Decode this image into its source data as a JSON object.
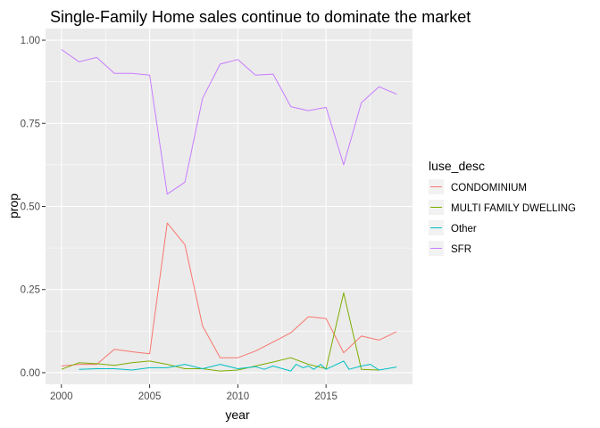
{
  "chart_data": {
    "type": "line",
    "title": "Single-Family Home sales continue to dominate the market",
    "xlabel": "year",
    "ylabel": "prop",
    "xlim": [
      1999.1,
      2019.9
    ],
    "ylim": [
      -0.035,
      1.035
    ],
    "x_ticks": [
      2000,
      2005,
      2010,
      2015
    ],
    "x_tick_labels": [
      "2000",
      "2005",
      "2010",
      "2015"
    ],
    "y_ticks": [
      0,
      0.25,
      0.5,
      0.75,
      1.0
    ],
    "y_tick_labels": [
      "0.00",
      "0.25",
      "0.50",
      "0.75",
      "1.00"
    ],
    "grid": true,
    "legend_title": "luse_desc",
    "legend_position": "right",
    "series": [
      {
        "name": "CONDOMINIUM",
        "color": "#F8766D",
        "x": [
          2000,
          2001,
          2002,
          2003,
          2004,
          2005,
          2006,
          2007,
          2008,
          2009,
          2010,
          2011,
          2012,
          2013,
          2014,
          2015,
          2016,
          2017,
          2018,
          2019
        ],
        "y": [
          0.02,
          0.025,
          0.025,
          0.07,
          0.063,
          0.057,
          0.45,
          0.385,
          0.14,
          0.045,
          0.045,
          0.065,
          0.092,
          0.12,
          0.168,
          0.163,
          0.06,
          0.11,
          0.098,
          0.123
        ]
      },
      {
        "name": "MULTI FAMILY DWELLING",
        "color": "#7CAE00",
        "x": [
          2000,
          2001,
          2002,
          2003,
          2004,
          2005,
          2006,
          2007,
          2008,
          2009,
          2010,
          2011,
          2012,
          2013,
          2014,
          2015,
          2016,
          2017,
          2018
        ],
        "y": [
          0.01,
          0.03,
          0.027,
          0.022,
          0.03,
          0.035,
          0.025,
          0.012,
          0.012,
          0.005,
          0.008,
          0.02,
          0.032,
          0.045,
          0.025,
          0.012,
          0.24,
          0.01,
          0.008
        ]
      },
      {
        "name": "Other",
        "color": "#00BFC4",
        "x": [
          2001,
          2002,
          2003,
          2004,
          2005,
          2006,
          2007,
          2008,
          2009,
          2010,
          2011,
          2011.5,
          2012,
          2013,
          2013.3,
          2013.7,
          2014,
          2014.3,
          2014.7,
          2015,
          2016,
          2016.3,
          2017,
          2017.5,
          2018,
          2019
        ],
        "y": [
          0.01,
          0.012,
          0.012,
          0.008,
          0.015,
          0.015,
          0.025,
          0.012,
          0.025,
          0.012,
          0.018,
          0.01,
          0.02,
          0.005,
          0.025,
          0.015,
          0.02,
          0.01,
          0.025,
          0.01,
          0.035,
          0.01,
          0.02,
          0.025,
          0.008,
          0.017
        ]
      },
      {
        "name": "SFR",
        "color": "#C77CFF",
        "x": [
          2000,
          2001,
          2002,
          2003,
          2004,
          2005,
          2006,
          2007,
          2008,
          2009,
          2010,
          2011,
          2012,
          2013,
          2014,
          2015,
          2016,
          2017,
          2018,
          2019
        ],
        "y": [
          0.972,
          0.935,
          0.948,
          0.9,
          0.9,
          0.895,
          0.537,
          0.573,
          0.825,
          0.928,
          0.942,
          0.895,
          0.898,
          0.8,
          0.788,
          0.798,
          0.625,
          0.812,
          0.86,
          0.838
        ]
      }
    ]
  }
}
